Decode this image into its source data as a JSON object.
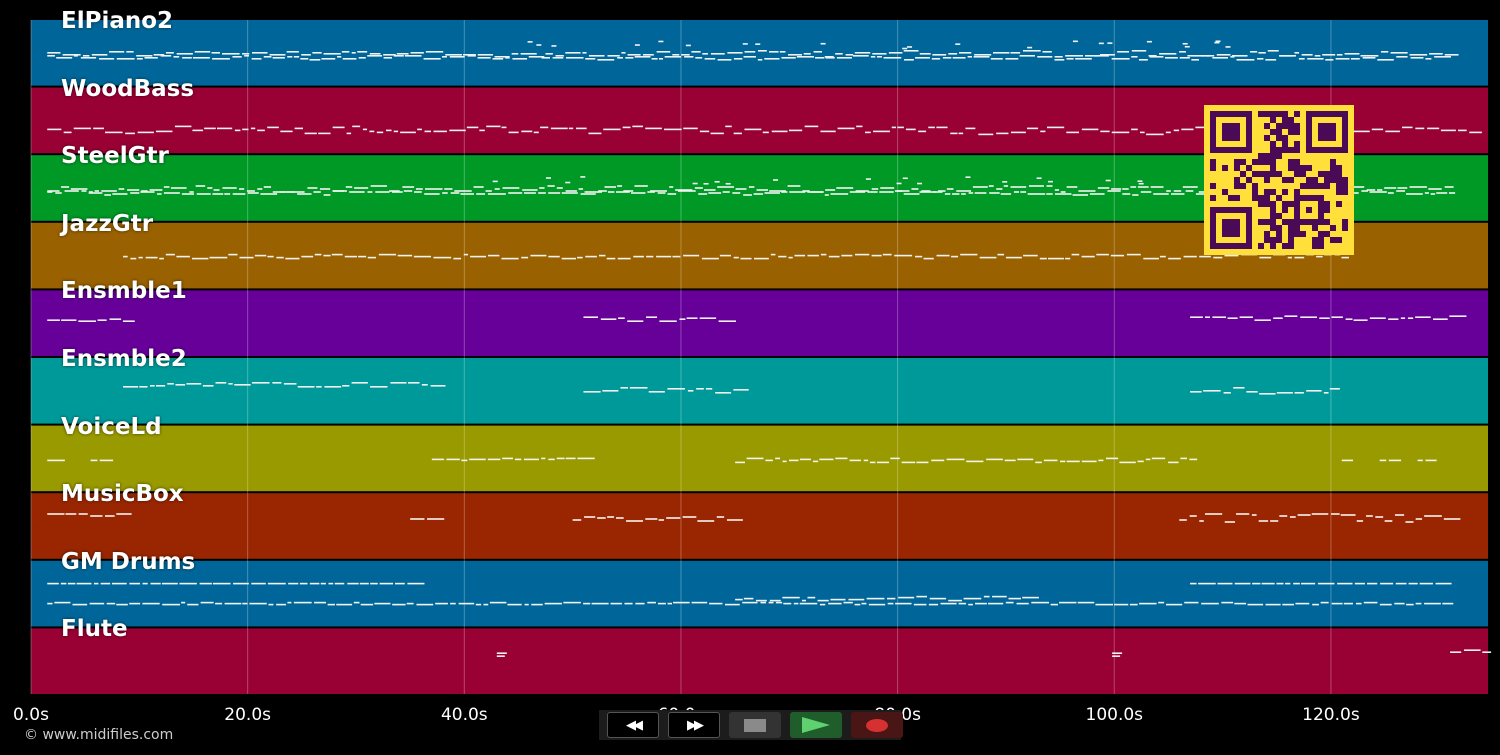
{
  "tracks": [
    {
      "name": "ElPiano2",
      "color": "#006699",
      "pattern": "dense-mid"
    },
    {
      "name": "WoodBass",
      "color": "#990033",
      "pattern": "dashes-low"
    },
    {
      "name": "SteelGtr",
      "color": "#009926",
      "pattern": "dense-mid"
    },
    {
      "name": "JazzGtr",
      "color": "#996100",
      "pattern": "sparse-dashes"
    },
    {
      "name": "Ensmble1",
      "color": "#660099",
      "pattern": "phrases"
    },
    {
      "name": "Ensmble2",
      "color": "#009999",
      "pattern": "phrases"
    },
    {
      "name": "VoiceLd",
      "color": "#999900",
      "pattern": "phrases"
    },
    {
      "name": "MusicBox",
      "color": "#992600",
      "pattern": "phrases"
    },
    {
      "name": "GM Drums",
      "color": "#006699",
      "pattern": "drums"
    },
    {
      "name": "Flute",
      "color": "#990033",
      "pattern": "rare"
    }
  ],
  "axis": {
    "ticks": [
      "0.0s",
      "20.0s",
      "40.0s",
      "60.0s",
      "80.0s",
      "100.0s",
      "120.0s"
    ],
    "tick_values": [
      0,
      20,
      40,
      60,
      80,
      100,
      120
    ],
    "max_seconds": 134.5
  },
  "copyright": "© www.midifiles.com",
  "transport": {
    "rewind_icon": "rewind-icon",
    "forward_icon": "fast-forward-icon",
    "stop_icon": "stop-icon",
    "play_icon": "play-icon",
    "record_icon": "record-icon"
  },
  "colors": {
    "background": "#000000",
    "qr_yellow": "#ffe03b",
    "qr_purple": "#4b0a55"
  }
}
